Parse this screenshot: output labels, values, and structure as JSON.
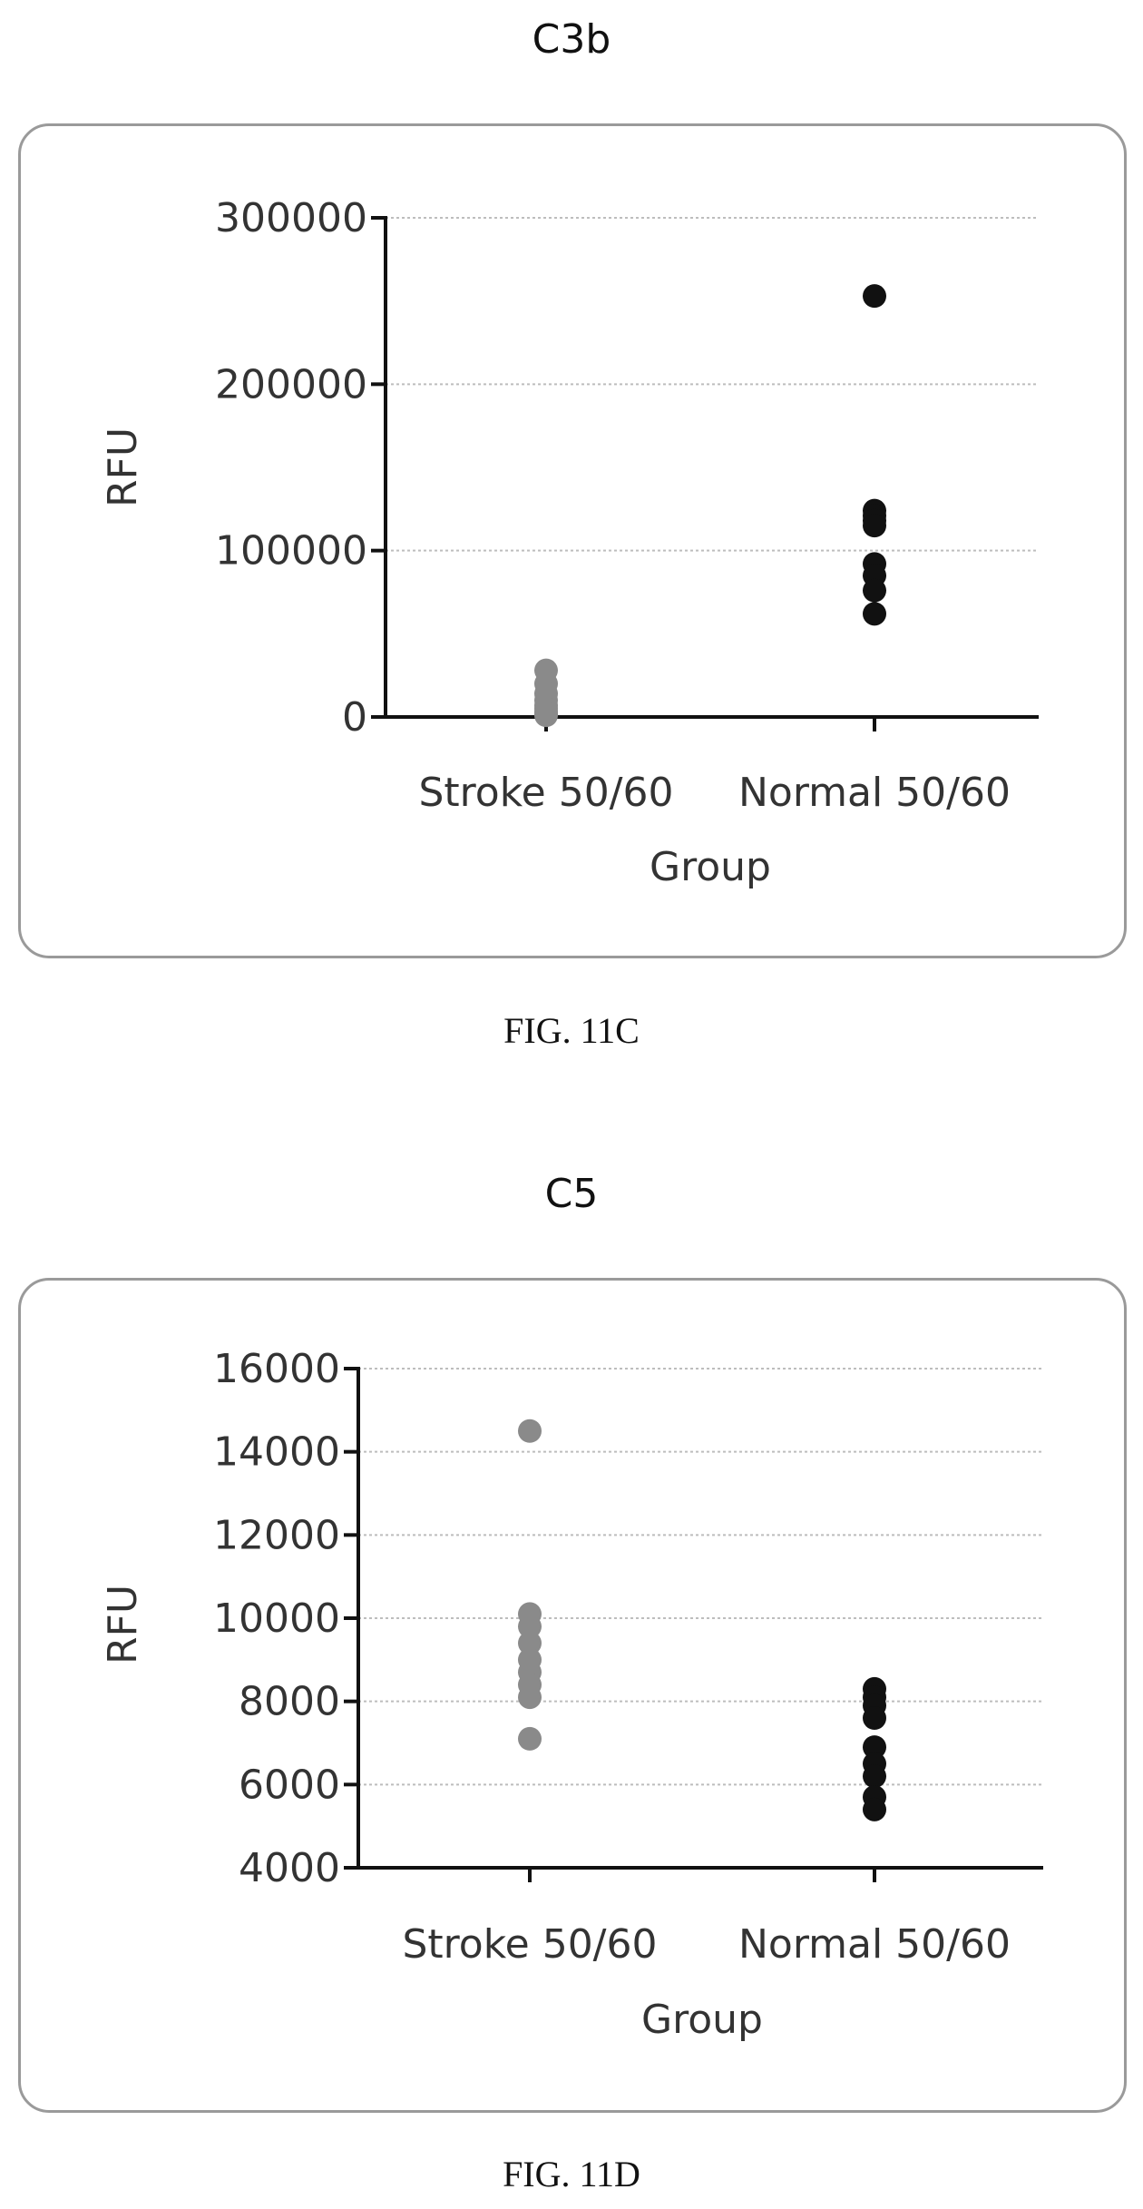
{
  "charts": [
    {
      "title": "C3b",
      "caption": "FIG. 11C"
    },
    {
      "title": "C5",
      "caption": "FIG. 11D"
    }
  ],
  "colors": {
    "stroke_group": "#8a8a8a",
    "normal_group": "#111111",
    "grid": "#bdbdbd",
    "axis": "#111111",
    "frame": "#9a9a9a"
  },
  "chart_data": [
    {
      "type": "scatter",
      "title": "C3b",
      "xlabel": "Group",
      "ylabel": "RFU",
      "categories": [
        "Stroke 50/60",
        "Normal 50/60"
      ],
      "ylim": [
        0,
        300000
      ],
      "yticks": [
        0,
        100000,
        200000,
        300000
      ],
      "ytick_labels": [
        "0",
        "100000",
        "200000",
        "300000"
      ],
      "grid": true,
      "series": [
        {
          "category": "Stroke 50/60",
          "color": "#8a8a8a",
          "values": [
            28000,
            20000,
            14000,
            10000,
            7000,
            5000,
            3000,
            2000,
            1000
          ]
        },
        {
          "category": "Normal 50/60",
          "color": "#111111",
          "values": [
            253000,
            124000,
            121000,
            118000,
            115000,
            92000,
            85000,
            76000,
            62000
          ]
        }
      ]
    },
    {
      "type": "scatter",
      "title": "C5",
      "xlabel": "Group",
      "ylabel": "RFU",
      "categories": [
        "Stroke 50/60",
        "Normal 50/60"
      ],
      "ylim": [
        4000,
        16000
      ],
      "yticks": [
        4000,
        6000,
        8000,
        10000,
        12000,
        14000,
        16000
      ],
      "ytick_labels": [
        "4000",
        "6000",
        "8000",
        "10000",
        "12000",
        "14000",
        "16000"
      ],
      "grid": true,
      "series": [
        {
          "category": "Stroke 50/60",
          "color": "#8a8a8a",
          "values": [
            14500,
            10100,
            9800,
            9400,
            9000,
            8700,
            8400,
            8100,
            7100
          ]
        },
        {
          "category": "Normal 50/60",
          "color": "#111111",
          "values": [
            8300,
            8100,
            7900,
            7600,
            6900,
            6500,
            6200,
            5700,
            5400
          ]
        }
      ]
    }
  ]
}
